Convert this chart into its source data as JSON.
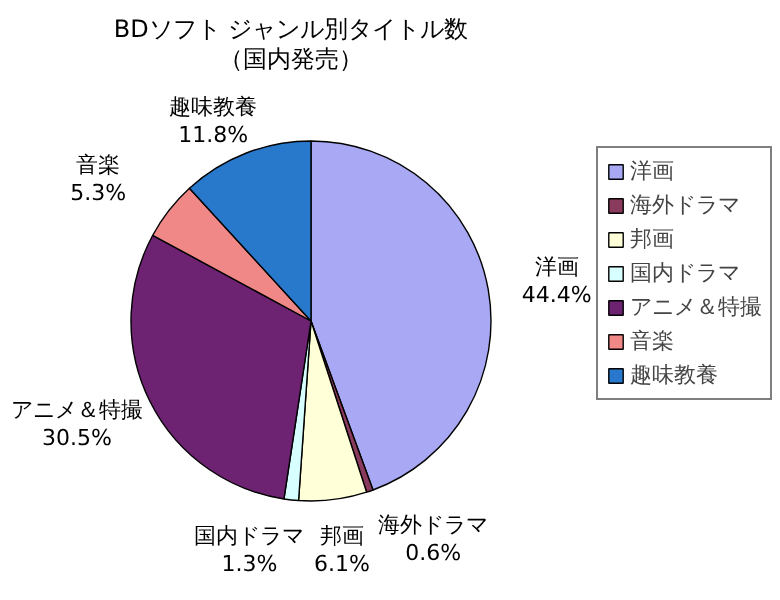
{
  "chart_data": {
    "type": "pie",
    "title": "BDソフト ジャンル別タイトル数",
    "subtitle": "（国内発売）",
    "categories": [
      "洋画",
      "海外ドラマ",
      "邦画",
      "国内ドラマ",
      "アニメ＆特撮",
      "音楽",
      "趣味教養"
    ],
    "values": [
      44.4,
      0.6,
      6.1,
      1.3,
      30.5,
      5.3,
      11.8
    ],
    "value_labels": [
      "44.4%",
      "0.6%",
      "6.1%",
      "1.3%",
      "30.5%",
      "5.3%",
      "11.8%"
    ],
    "colors": [
      "#a8a8f4",
      "#8a3a5c",
      "#ffffd8",
      "#d8ffff",
      "#6e2272",
      "#f08888",
      "#2878cc"
    ],
    "legend": "right"
  }
}
